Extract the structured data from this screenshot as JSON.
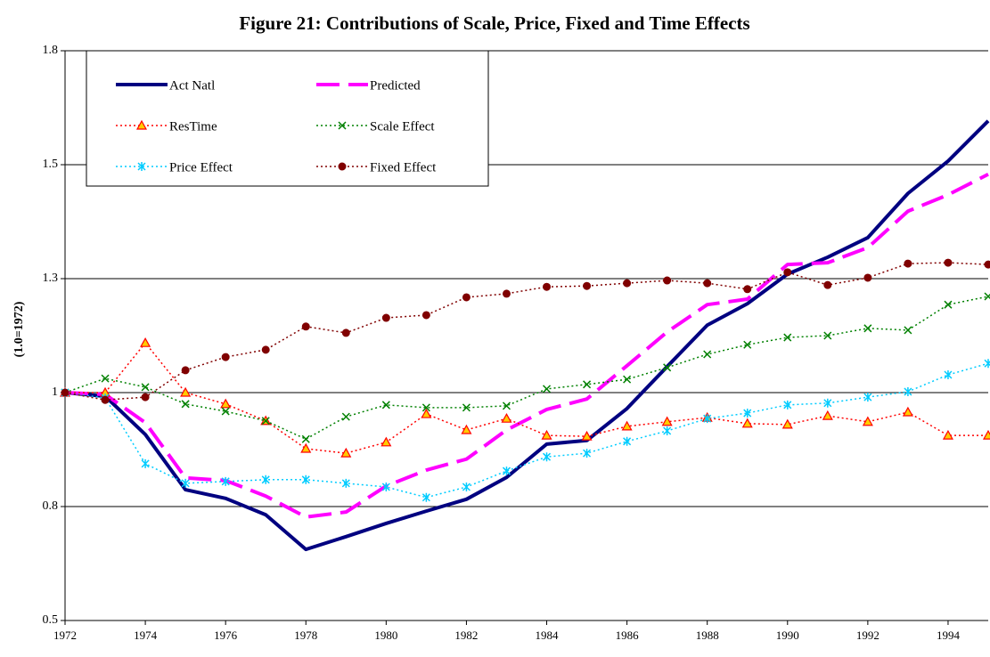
{
  "chart_data": {
    "type": "line",
    "title": "Figure 21: Contributions of Scale, Price, Fixed and Time Effects",
    "y_label": "(1.0=1972)",
    "x": [
      1972,
      1973,
      1974,
      1975,
      1976,
      1977,
      1978,
      1979,
      1980,
      1981,
      1982,
      1983,
      1984,
      1985,
      1986,
      1987,
      1988,
      1989,
      1990,
      1991,
      1992,
      1993,
      1994,
      1995
    ],
    "xlim": [
      1972,
      1995
    ],
    "xticks": [
      1972,
      1974,
      1976,
      1978,
      1980,
      1982,
      1984,
      1986,
      1988,
      1990,
      1992,
      1994
    ],
    "ylim": [
      0.5,
      1.75
    ],
    "yticks": [
      0.5,
      {
        "value": 0.75,
        "label": "0.8"
      },
      1.0,
      {
        "value": 1.25,
        "label": "1.3"
      },
      1.5,
      {
        "value": 1.75,
        "label": "1.8"
      }
    ],
    "grid": true,
    "legend": "top-left",
    "series": [
      {
        "name": "Act Natl",
        "color": "#000080",
        "line_style": "solid",
        "marker": "none",
        "values": [
          1.0,
          0.992,
          0.908,
          0.787,
          0.768,
          0.732,
          0.656,
          0.684,
          0.713,
          0.74,
          0.766,
          0.814,
          0.887,
          0.895,
          0.965,
          1.057,
          1.148,
          1.195,
          1.26,
          1.297,
          1.34,
          1.437,
          1.508,
          1.596
        ]
      },
      {
        "name": "Predicted",
        "color": "#ff00ff",
        "line_style": "dashed",
        "marker": "none",
        "values": [
          1.0,
          0.996,
          0.934,
          0.813,
          0.807,
          0.773,
          0.727,
          0.738,
          0.795,
          0.83,
          0.854,
          0.918,
          0.963,
          0.986,
          1.059,
          1.133,
          1.193,
          1.205,
          1.281,
          1.285,
          1.318,
          1.398,
          1.434,
          1.479
        ]
      },
      {
        "name": "ResTime",
        "color": "#ff0000",
        "line_style": "dotted",
        "marker": "triangle",
        "marker_fill": "#ffcc00",
        "values": [
          1.0,
          1.0,
          1.109,
          1.0,
          0.975,
          0.938,
          0.877,
          0.867,
          0.891,
          0.953,
          0.918,
          0.943,
          0.906,
          0.904,
          0.926,
          0.936,
          0.945,
          0.932,
          0.93,
          0.949,
          0.936,
          0.957,
          0.906,
          0.906
        ]
      },
      {
        "name": "Scale Effect",
        "color": "#008000",
        "line_style": "dotted",
        "marker": "x",
        "values": [
          1.0,
          1.031,
          1.012,
          0.975,
          0.959,
          0.938,
          0.898,
          0.947,
          0.973,
          0.967,
          0.967,
          0.971,
          1.008,
          1.018,
          1.029,
          1.055,
          1.084,
          1.105,
          1.121,
          1.125,
          1.141,
          1.137,
          1.193,
          1.211
        ]
      },
      {
        "name": "Price Effect",
        "color": "#00ccff",
        "line_style": "dotted",
        "marker": "asterisk",
        "values": [
          1.0,
          0.988,
          0.844,
          0.801,
          0.805,
          0.809,
          0.809,
          0.801,
          0.793,
          0.77,
          0.793,
          0.828,
          0.859,
          0.867,
          0.893,
          0.916,
          0.943,
          0.955,
          0.973,
          0.977,
          0.99,
          1.002,
          1.039,
          1.064
        ]
      },
      {
        "name": "Fixed Effect",
        "color": "#800000",
        "line_style": "dotted",
        "marker": "circle",
        "values": [
          1.0,
          0.984,
          0.99,
          1.049,
          1.078,
          1.094,
          1.145,
          1.131,
          1.164,
          1.17,
          1.209,
          1.217,
          1.232,
          1.234,
          1.24,
          1.246,
          1.24,
          1.227,
          1.264,
          1.236,
          1.252,
          1.283,
          1.285,
          1.281
        ]
      }
    ]
  }
}
